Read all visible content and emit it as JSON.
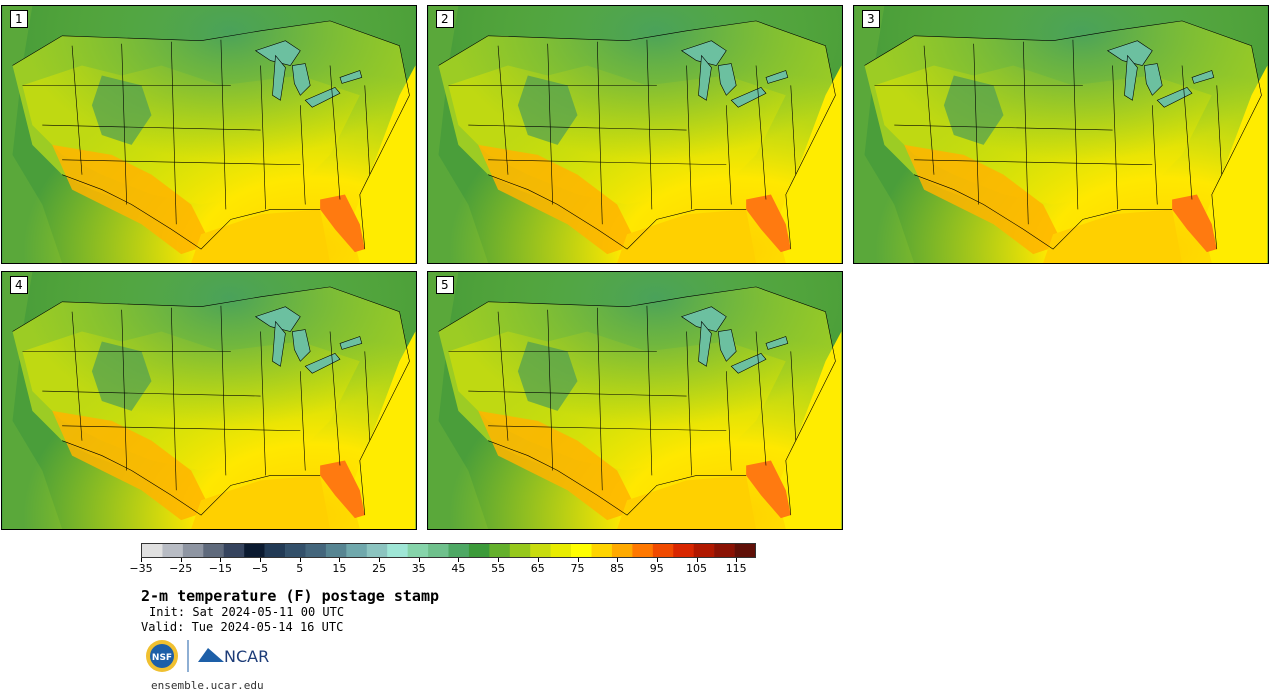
{
  "figure": {
    "title": "2-m temperature (F) postage stamp",
    "init": "Init: Sat 2024-05-11 00 UTC",
    "valid": "Valid: Tue 2024-05-14 16 UTC",
    "url": "ensemble.ucar.edu"
  },
  "panels": [
    {
      "label": "1"
    },
    {
      "label": "2"
    },
    {
      "label": "3"
    },
    {
      "label": "4"
    },
    {
      "label": "5"
    }
  ],
  "colorbar": {
    "min": -35,
    "max": 120,
    "step": 5,
    "tick_labels": [
      "-35",
      "-25",
      "-15",
      "-5",
      "5",
      "15",
      "25",
      "35",
      "45",
      "55",
      "65",
      "75",
      "85",
      "95",
      "105",
      "115"
    ],
    "colors": [
      "#e0e0e0",
      "#b8bcc4",
      "#8e95a2",
      "#5f6a7c",
      "#36445e",
      "#0b1a30",
      "#223a55",
      "#33506a",
      "#44667c",
      "#578592",
      "#70a8ac",
      "#8cc4c0",
      "#9fe6d6",
      "#86d4aa",
      "#6fc08c",
      "#4ea864",
      "#3c9a3a",
      "#64b02c",
      "#96c81c",
      "#c8dc0e",
      "#e8ec00",
      "#ffff00",
      "#ffd400",
      "#ffaa00",
      "#ff7800",
      "#f04a00",
      "#d82600",
      "#b01800",
      "#8a1204",
      "#601008"
    ]
  },
  "logos": {
    "nsf": "NSF",
    "ncar": "NCAR"
  },
  "icons": [
    "nsf-logo-icon",
    "ncar-logo-icon"
  ]
}
